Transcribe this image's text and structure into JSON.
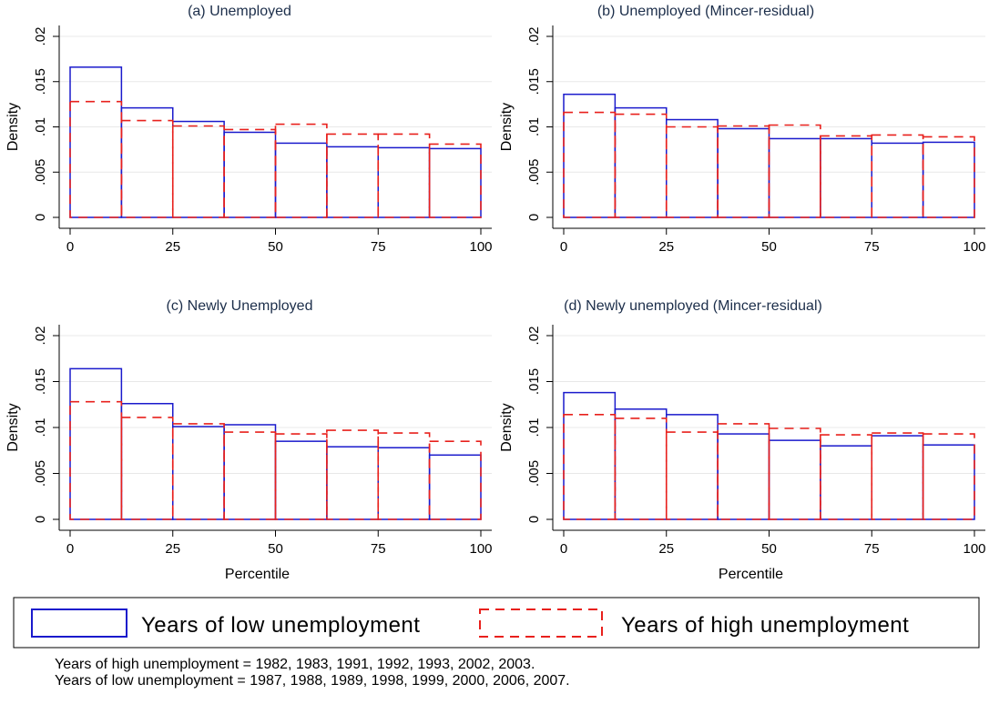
{
  "chart_data": [
    {
      "type": "bar",
      "title": "(a) Unemployed",
      "xlabel": "",
      "ylabel": "Density",
      "xlim": [
        0,
        100
      ],
      "ylim": [
        0,
        0.02
      ],
      "xticks": [
        "0",
        "25",
        "50",
        "75",
        "100"
      ],
      "yticks": [
        "0",
        ".005",
        ".01",
        ".015",
        ".02"
      ],
      "bin_edges": [
        0,
        12.5,
        25,
        37.5,
        50,
        62.5,
        75,
        87.5,
        100
      ],
      "series": [
        {
          "name": "Years of low unemployment",
          "values": [
            0.0166,
            0.0121,
            0.0106,
            0.0094,
            0.0082,
            0.0078,
            0.0077,
            0.0076
          ]
        },
        {
          "name": "Years of high unemployment",
          "values": [
            0.0128,
            0.0107,
            0.0101,
            0.0097,
            0.0103,
            0.0092,
            0.0092,
            0.0081
          ]
        }
      ]
    },
    {
      "type": "bar",
      "title": "(b) Unemployed (Mincer-residual)",
      "xlabel": "",
      "ylabel": "Density",
      "xlim": [
        0,
        100
      ],
      "ylim": [
        0,
        0.02
      ],
      "xticks": [
        "0",
        "25",
        "50",
        "75",
        "100"
      ],
      "yticks": [
        "0",
        ".005",
        ".01",
        ".015",
        ".02"
      ],
      "bin_edges": [
        0,
        12.5,
        25,
        37.5,
        50,
        62.5,
        75,
        87.5,
        100
      ],
      "series": [
        {
          "name": "Years of low unemployment",
          "values": [
            0.0136,
            0.0121,
            0.0108,
            0.0098,
            0.0087,
            0.0087,
            0.0082,
            0.0083
          ]
        },
        {
          "name": "Years of high unemployment",
          "values": [
            0.0116,
            0.0114,
            0.01,
            0.0101,
            0.0102,
            0.009,
            0.0091,
            0.0089
          ]
        }
      ]
    },
    {
      "type": "bar",
      "title": "(c) Newly Unemployed",
      "xlabel": "Percentile",
      "ylabel": "Density",
      "xlim": [
        0,
        100
      ],
      "ylim": [
        0,
        0.02
      ],
      "xticks": [
        "0",
        "25",
        "50",
        "75",
        "100"
      ],
      "yticks": [
        "0",
        ".005",
        ".01",
        ".015",
        ".02"
      ],
      "bin_edges": [
        0,
        12.5,
        25,
        37.5,
        50,
        62.5,
        75,
        87.5,
        100
      ],
      "series": [
        {
          "name": "Years of low unemployment",
          "values": [
            0.0164,
            0.0126,
            0.0101,
            0.0103,
            0.0085,
            0.0079,
            0.0078,
            0.007
          ]
        },
        {
          "name": "Years of high unemployment",
          "values": [
            0.0128,
            0.0111,
            0.0104,
            0.0095,
            0.0093,
            0.0097,
            0.0094,
            0.0085
          ]
        }
      ]
    },
    {
      "type": "bar",
      "title": "(d) Newly unemployed (Mincer-residual)",
      "xlabel": "Percentile",
      "ylabel": "Density",
      "xlim": [
        0,
        100
      ],
      "ylim": [
        0,
        0.02
      ],
      "xticks": [
        "0",
        "25",
        "50",
        "75",
        "100"
      ],
      "yticks": [
        "0",
        ".005",
        ".01",
        ".015",
        ".02"
      ],
      "bin_edges": [
        0,
        12.5,
        25,
        37.5,
        50,
        62.5,
        75,
        87.5,
        100
      ],
      "series": [
        {
          "name": "Years of low unemployment",
          "values": [
            0.0138,
            0.012,
            0.0114,
            0.0093,
            0.0086,
            0.008,
            0.0091,
            0.0081
          ]
        },
        {
          "name": "Years of high unemployment",
          "values": [
            0.0114,
            0.011,
            0.0095,
            0.0104,
            0.0099,
            0.0092,
            0.0094,
            0.0093
          ]
        }
      ]
    }
  ],
  "legend": {
    "low_label": "Years of low unemployment",
    "high_label": "Years of high unemployment"
  },
  "colors": {
    "low": "#1a1acc",
    "high": "#e8201c",
    "grid": "#e8e8e8",
    "title": "#1c2e4a"
  },
  "notes": {
    "high_years": "Years of high unemployment = 1982, 1983, 1991, 1992, 1993, 2002, 2003.",
    "low_years": "Years of low unemployment = 1987, 1988, 1989, 1998, 1999, 2000, 2006, 2007."
  }
}
